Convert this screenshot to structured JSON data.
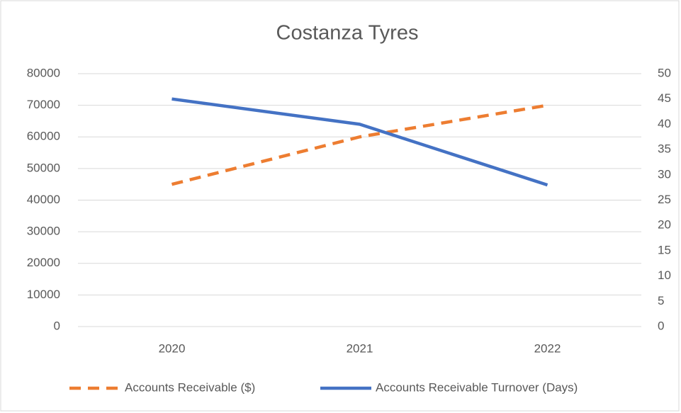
{
  "chart_data": {
    "type": "line",
    "title": "Costanza Tyres",
    "categories": [
      "2020",
      "2021",
      "2022"
    ],
    "series": [
      {
        "name": "Accounts Receivable ($)",
        "color": "#ed7d31",
        "line_style": "dashed",
        "values": [
          45000,
          60000,
          70000
        ]
      },
      {
        "name": "Accounts Receivable Turnover (Days)",
        "color": "#4472c4",
        "line_style": "solid",
        "axis": "y2",
        "values": [
          45,
          40,
          28
        ]
      }
    ],
    "ylim": [
      0,
      80000
    ],
    "yticks": [
      0,
      10000,
      20000,
      30000,
      40000,
      50000,
      60000,
      70000,
      80000
    ],
    "y2lim": [
      0,
      50
    ],
    "y2ticks": [
      0,
      5,
      10,
      15,
      20,
      25,
      30,
      35,
      40,
      45,
      50
    ],
    "grid": true,
    "legend": "bottom"
  }
}
